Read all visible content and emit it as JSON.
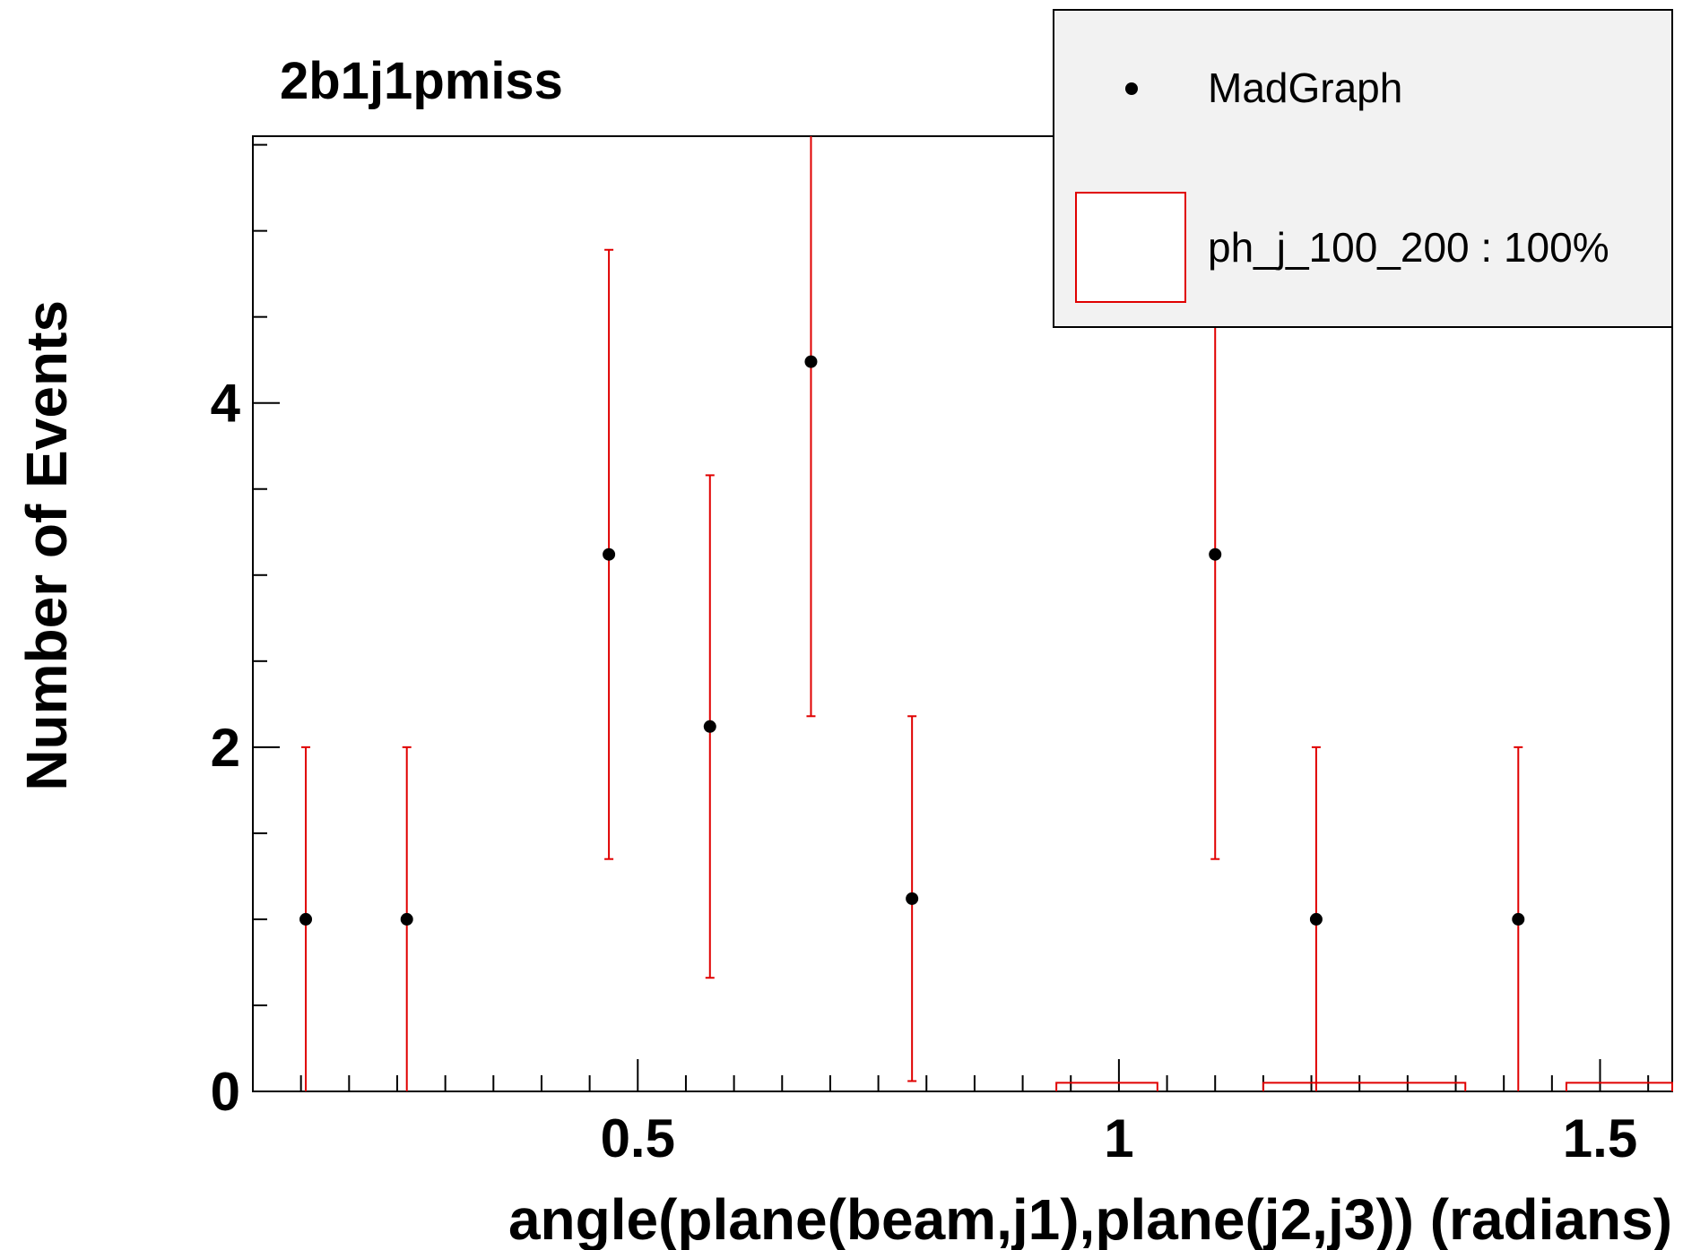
{
  "chart_data": {
    "type": "scatter",
    "title": "2b1j1pmiss",
    "xlabel": "angle(plane(beam,j1),plane(j2,j3)) (radians)",
    "ylabel": "Number of Events",
    "xlim": [
      0.1,
      1.575
    ],
    "ylim": [
      0,
      5.55
    ],
    "x_ticks": [
      0.5,
      1,
      1.5
    ],
    "x_tick_labels": [
      "0.5",
      "1",
      "1.5"
    ],
    "y_ticks": [
      0,
      2,
      4
    ],
    "y_tick_labels": [
      "0",
      "2",
      "4"
    ],
    "legend_position": "top-right",
    "series": [
      {
        "name": "MadGraph",
        "style": "points-with-errors",
        "color": "#000000",
        "error_color": "#e00000",
        "points": [
          {
            "x": 0.155,
            "y": 1.0,
            "err_lo": 1.0,
            "err_hi": 1.0
          },
          {
            "x": 0.26,
            "y": 1.0,
            "err_lo": 1.0,
            "err_hi": 1.0
          },
          {
            "x": 0.47,
            "y": 3.12,
            "err_lo": 1.77,
            "err_hi": 1.77
          },
          {
            "x": 0.575,
            "y": 2.12,
            "err_lo": 1.46,
            "err_hi": 1.46
          },
          {
            "x": 0.68,
            "y": 4.24,
            "err_lo": 2.06,
            "err_hi": 2.06
          },
          {
            "x": 0.785,
            "y": 1.12,
            "err_lo": 1.06,
            "err_hi": 1.06
          },
          {
            "x": 1.1,
            "y": 3.12,
            "err_lo": 1.77,
            "err_hi": 1.77
          },
          {
            "x": 1.205,
            "y": 1.0,
            "err_lo": 1.0,
            "err_hi": 1.0
          },
          {
            "x": 1.415,
            "y": 1.0,
            "err_lo": 1.0,
            "err_hi": 1.0
          }
        ]
      },
      {
        "name": "ph_j_100_200 : 100%",
        "style": "histogram",
        "color": "#e00000",
        "bins": [
          {
            "x0": 0.935,
            "x1": 1.04,
            "y": 0.05
          },
          {
            "x0": 1.15,
            "x1": 1.36,
            "y": 0.05
          },
          {
            "x0": 1.465,
            "x1": 1.575,
            "y": 0.05
          }
        ]
      }
    ]
  }
}
